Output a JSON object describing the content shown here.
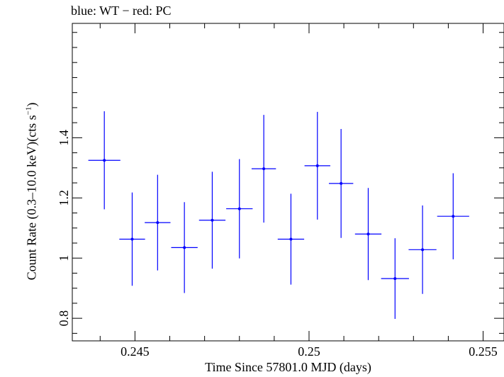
{
  "chart_data": {
    "type": "scatter",
    "title": "blue: WT − red: PC",
    "xlabel": "Time Since 57801.0 MJD (days)",
    "ylabel": "Count Rate (0.3–10.0 keV)(cts s⁻¹)",
    "xlim": [
      0.2432,
      0.2556
    ],
    "ylim": [
      0.725,
      1.78
    ],
    "xticks": [
      0.245,
      0.25,
      0.255
    ],
    "xtick_labels": [
      "0.245",
      "0.25",
      "0.255"
    ],
    "yticks": [
      0.8,
      1.0,
      1.2,
      1.4
    ],
    "ytick_labels": [
      "0.8",
      "1",
      "1.2",
      "1.4"
    ],
    "grid": false,
    "series": [
      {
        "color": "#0000ff",
        "points": [
          {
            "x": 0.24412,
            "xerr": 0.00046,
            "y": 1.325,
            "yerr": 0.163
          },
          {
            "x": 0.24492,
            "xerr": 0.00037,
            "y": 1.063,
            "yerr": 0.155
          },
          {
            "x": 0.24565,
            "xerr": 0.00037,
            "y": 1.118,
            "yerr": 0.159
          },
          {
            "x": 0.24642,
            "xerr": 0.00038,
            "y": 1.035,
            "yerr": 0.151
          },
          {
            "x": 0.24722,
            "xerr": 0.00038,
            "y": 1.126,
            "yerr": 0.161
          },
          {
            "x": 0.248,
            "xerr": 0.00038,
            "y": 1.164,
            "yerr": 0.165
          },
          {
            "x": 0.2487,
            "xerr": 0.00035,
            "y": 1.297,
            "yerr": 0.179
          },
          {
            "x": 0.24948,
            "xerr": 0.00038,
            "y": 1.063,
            "yerr": 0.151
          },
          {
            "x": 0.25024,
            "xerr": 0.00037,
            "y": 1.307,
            "yerr": 0.179
          },
          {
            "x": 0.25092,
            "xerr": 0.00035,
            "y": 1.248,
            "yerr": 0.181
          },
          {
            "x": 0.2517,
            "xerr": 0.00038,
            "y": 1.08,
            "yerr": 0.153
          },
          {
            "x": 0.25247,
            "xerr": 0.0004,
            "y": 0.932,
            "yerr": 0.134
          },
          {
            "x": 0.25326,
            "xerr": 0.0004,
            "y": 1.028,
            "yerr": 0.147
          },
          {
            "x": 0.25414,
            "xerr": 0.00046,
            "y": 1.139,
            "yerr": 0.143
          }
        ]
      }
    ]
  }
}
